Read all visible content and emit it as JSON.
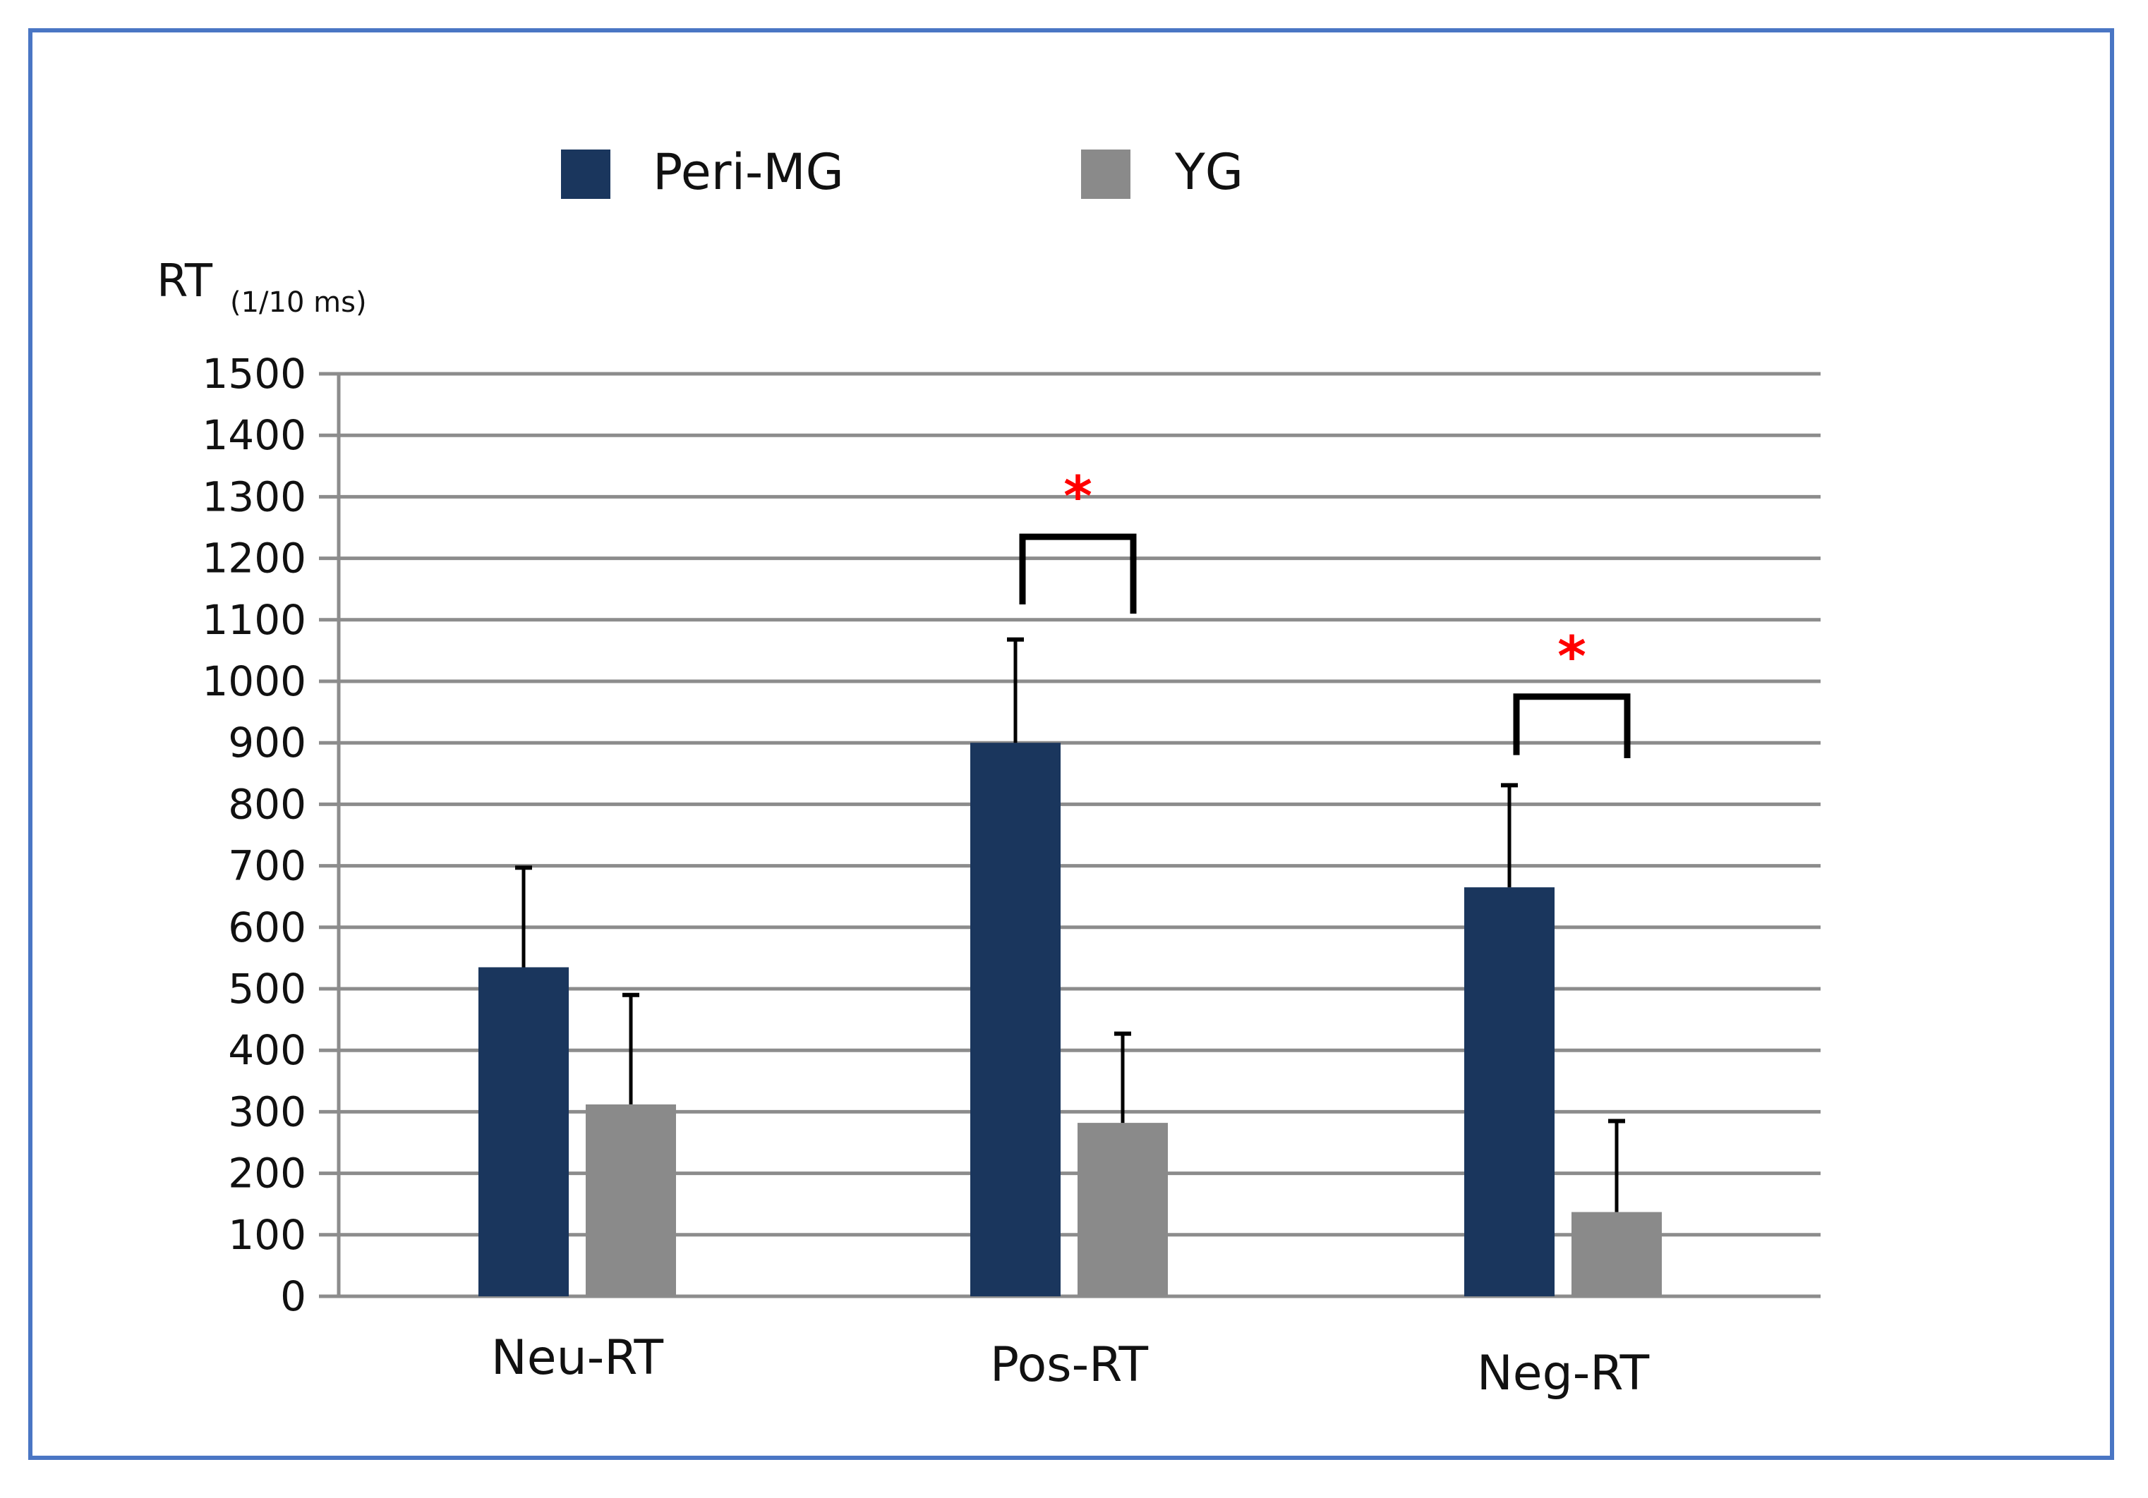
{
  "chart_data": {
    "type": "bar",
    "categories": [
      "Neu-RT",
      "Pos-RT",
      "Neg-RT"
    ],
    "series": [
      {
        "name": "Peri-MG",
        "color": "#1a365d",
        "values": [
          535,
          900,
          665
        ],
        "error": [
          162,
          168,
          166
        ]
      },
      {
        "name": "YG",
        "color": "#8a8a8a",
        "values": [
          312,
          282,
          137
        ],
        "error": [
          178,
          145,
          148
        ]
      }
    ],
    "ylabel": "RT",
    "ylabel_unit": "(1/10 ms)",
    "ylim": [
      0,
      1500
    ],
    "yticks": [
      0,
      100,
      200,
      300,
      400,
      500,
      600,
      700,
      800,
      900,
      1000,
      1100,
      1200,
      1300,
      1400,
      1500
    ],
    "grid": true,
    "legend": "top-center",
    "annotations": [
      {
        "category": "Pos-RT",
        "label": "*",
        "bracket_value": 1235,
        "left_end_value": 1125,
        "right_end_value": 1110
      },
      {
        "category": "Neg-RT",
        "label": "*",
        "bracket_value": 975,
        "left_end_value": 880,
        "right_end_value": 875
      }
    ],
    "colors": {
      "grid": "#8c8c8c",
      "axis": "#8c8c8c",
      "error_bar": "#000000",
      "frame": "#4a76c4",
      "star": "#ff0000"
    }
  }
}
